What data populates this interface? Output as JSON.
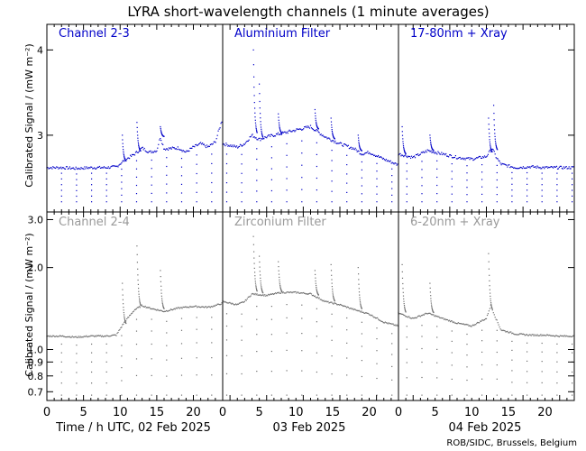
{
  "title": "LYRA short-wavelength channels (1 minute averages)",
  "credit": "ROB/SIDC, Brussels, Belgium",
  "chart_data": [
    {
      "type": "scatter",
      "row": "top",
      "ylabel": "Calibrated Signal / (mW m⁻²)",
      "yticks": [
        "4",
        "3"
      ],
      "ylim": [
        2.1,
        4.3
      ],
      "color": "#0000c8",
      "panels": [
        "Channel 2-3",
        "Aluminium Filter",
        "17-80nm + Xray"
      ],
      "series": [
        {
          "x": [
            0,
            2,
            4,
            6,
            8,
            9.5,
            10.5,
            12,
            13,
            14,
            15,
            15.5,
            16,
            18,
            19,
            20,
            21,
            22,
            23,
            24
          ],
          "values": [
            2.62,
            2.62,
            2.61,
            2.62,
            2.62,
            2.63,
            2.7,
            2.78,
            2.85,
            2.8,
            2.82,
            2.98,
            2.84,
            2.85,
            2.8,
            2.86,
            2.9,
            2.86,
            2.92,
            3.2
          ]
        },
        {
          "x": [
            0,
            1,
            2,
            3,
            4,
            5,
            6,
            8,
            10,
            12,
            14,
            16,
            18,
            19,
            20,
            22,
            24
          ],
          "values": [
            2.9,
            2.88,
            2.86,
            2.9,
            3.0,
            2.95,
            2.98,
            3.02,
            3.06,
            3.1,
            2.98,
            2.9,
            2.84,
            2.78,
            2.8,
            2.72,
            2.65
          ]
        },
        {
          "x": [
            0,
            2,
            4,
            6,
            8,
            10,
            12,
            12.8,
            13.3,
            14,
            16,
            18,
            20,
            22,
            24
          ],
          "values": [
            2.78,
            2.74,
            2.82,
            2.78,
            2.74,
            2.72,
            2.75,
            2.85,
            2.75,
            2.66,
            2.62,
            2.63,
            2.62,
            2.62,
            2.62
          ]
        }
      ],
      "baseline": 2.22,
      "flares": [
        {
          "x": 10.3,
          "peak": 3.0
        },
        {
          "x": 12.3,
          "peak": 3.15
        },
        {
          "x": 15.5,
          "peak": 3.1
        },
        {
          "x": 28.2,
          "peak": 4.0
        },
        {
          "x": 29.0,
          "peak": 3.6
        },
        {
          "x": 31.6,
          "peak": 3.25
        },
        {
          "x": 36.6,
          "peak": 3.3
        },
        {
          "x": 38.8,
          "peak": 3.2
        },
        {
          "x": 42.5,
          "peak": 3.0
        },
        {
          "x": 48.5,
          "peak": 3.1
        },
        {
          "x": 52.3,
          "peak": 3.0
        },
        {
          "x": 60.3,
          "peak": 3.2
        },
        {
          "x": 61.0,
          "peak": 3.35
        }
      ]
    },
    {
      "type": "scatter",
      "row": "bottom",
      "ylabel": "Calibrated Signal / (mW m⁻²)",
      "yticks": [
        "3.0",
        "2.0",
        "1.0",
        "0.9",
        "0.8",
        "0.7"
      ],
      "ylim": [
        0.65,
        3.2
      ],
      "ylog": true,
      "color": "#6e6e6e",
      "panels": [
        "Channel 2-4",
        "Zirconium Filter",
        "6-20nm + Xray"
      ],
      "series": [
        {
          "x": [
            0,
            2,
            4,
            6,
            8,
            9.5,
            10.5,
            12,
            13,
            14,
            15,
            16,
            18,
            20,
            22,
            23,
            24
          ],
          "values": [
            1.12,
            1.12,
            1.11,
            1.12,
            1.12,
            1.13,
            1.25,
            1.4,
            1.45,
            1.42,
            1.4,
            1.38,
            1.42,
            1.44,
            1.43,
            1.45,
            1.48
          ]
        },
        {
          "x": [
            0,
            1,
            2,
            3,
            4,
            6,
            8,
            10,
            12,
            14,
            16,
            18,
            20,
            22,
            24
          ],
          "values": [
            1.5,
            1.48,
            1.46,
            1.5,
            1.6,
            1.58,
            1.62,
            1.62,
            1.6,
            1.5,
            1.46,
            1.4,
            1.35,
            1.26,
            1.22
          ]
        },
        {
          "x": [
            0,
            2,
            4,
            6,
            8,
            10,
            12,
            12.6,
            13.3,
            14,
            16,
            18,
            20,
            22,
            24
          ],
          "values": [
            1.36,
            1.3,
            1.36,
            1.3,
            1.25,
            1.22,
            1.3,
            1.45,
            1.3,
            1.18,
            1.14,
            1.13,
            1.13,
            1.12,
            1.12
          ]
        }
      ],
      "baseline": 0.68,
      "flares": [
        {
          "x": 10.3,
          "peak": 1.75
        },
        {
          "x": 12.3,
          "peak": 2.4
        },
        {
          "x": 15.5,
          "peak": 1.95
        },
        {
          "x": 28.2,
          "peak": 2.6
        },
        {
          "x": 29.0,
          "peak": 2.2
        },
        {
          "x": 31.6,
          "peak": 2.1
        },
        {
          "x": 36.6,
          "peak": 1.95
        },
        {
          "x": 38.8,
          "peak": 2.05
        },
        {
          "x": 42.5,
          "peak": 2.0
        },
        {
          "x": 48.5,
          "peak": 2.05
        },
        {
          "x": 52.3,
          "peak": 1.75
        },
        {
          "x": 60.3,
          "peak": 2.25
        }
      ]
    }
  ],
  "xaxis": {
    "ticks": [
      "0",
      "5",
      "10",
      "15",
      "20",
      "0",
      "5",
      "10",
      "15",
      "20",
      "0",
      "5",
      "10",
      "15",
      "20"
    ],
    "day_labels": [
      "Time / h UTC, 02 Feb 2025",
      "03 Feb 2025",
      "04 Feb 2025"
    ],
    "xlim": [
      0,
      72
    ]
  }
}
